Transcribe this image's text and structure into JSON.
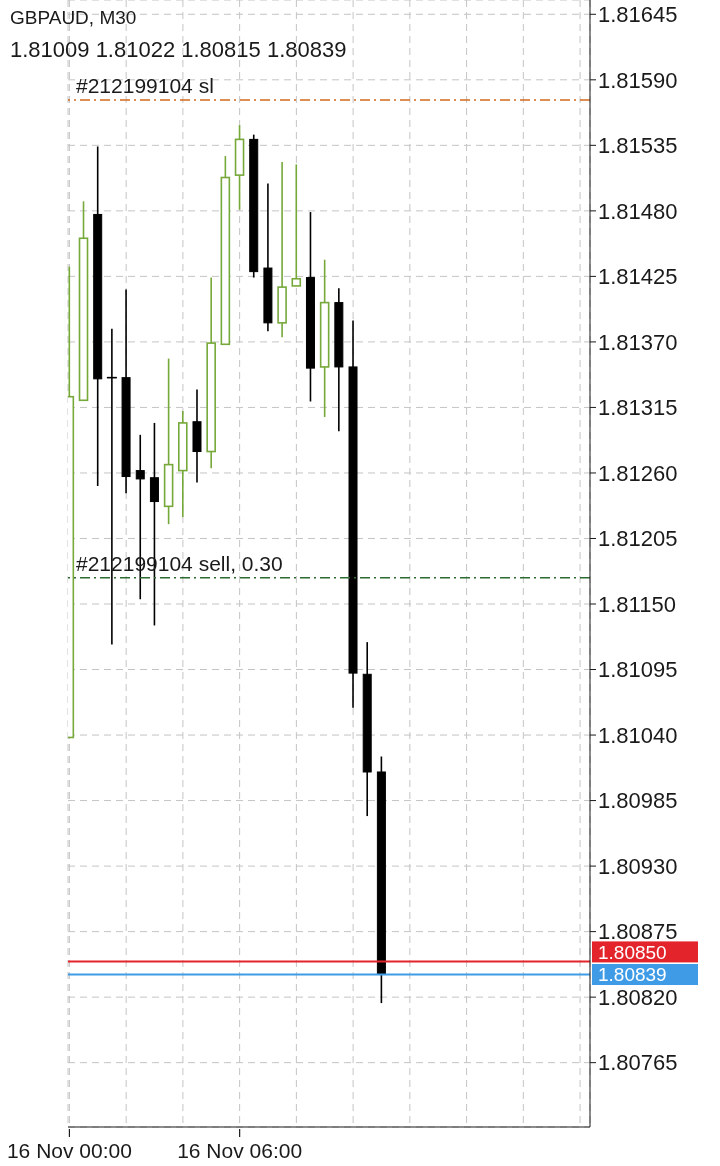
{
  "chart_data": {
    "type": "candlestick",
    "title": "GBPAUD, M30",
    "subtitle": "1.81009 1.81022 1.80815 1.80839",
    "x": [
      "--11-16T00:00",
      "--11-16T00:30",
      "--11-16T01:00",
      "--11-16T01:30",
      "--11-16T02:00",
      "--11-16T02:30",
      "--11-16T03:00",
      "--11-16T03:30",
      "--11-16T04:00",
      "--11-16T04:30",
      "--11-16T05:00",
      "--11-16T05:30",
      "--11-16T06:00",
      "--11-16T06:30",
      "--11-16T07:00",
      "--11-16T07:30",
      "--11-16T08:00",
      "--11-16T08:30",
      "--11-16T09:00",
      "--11-16T09:30",
      "--11-16T10:00",
      "--11-16T10:30",
      "--11-16T11:00"
    ],
    "ohlc": [
      [
        1.81038,
        1.81433,
        1.81038,
        1.81324
      ],
      [
        1.81321,
        1.81488,
        1.81321,
        1.81457
      ],
      [
        1.81477,
        1.81534,
        1.81249,
        1.81339
      ],
      [
        1.8134,
        1.81381,
        1.81116,
        1.8134
      ],
      [
        1.8134,
        1.81414,
        1.81243,
        1.81257
      ],
      [
        1.81262,
        1.81292,
        1.81154,
        1.81255
      ],
      [
        1.81256,
        1.81302,
        1.81132,
        1.81236
      ],
      [
        1.81232,
        1.81356,
        1.81217,
        1.81267
      ],
      [
        1.81262,
        1.81312,
        1.81223,
        1.81302
      ],
      [
        1.81303,
        1.8133,
        1.81252,
        1.81278
      ],
      [
        1.81278,
        1.81424,
        1.81264,
        1.81369
      ],
      [
        1.81368,
        1.81526,
        1.81368,
        1.81508
      ],
      [
        1.8151,
        1.81552,
        1.81481,
        1.8154
      ],
      [
        1.8154,
        1.81544,
        1.81424,
        1.81429
      ],
      [
        1.81432,
        1.81503,
        1.81379,
        1.81386
      ],
      [
        1.81386,
        1.81521,
        1.81374,
        1.81416
      ],
      [
        1.81417,
        1.81519,
        1.81417,
        1.81423
      ],
      [
        1.81424,
        1.81479,
        1.8132,
        1.81348
      ],
      [
        1.81349,
        1.81439,
        1.81307,
        1.81403
      ],
      [
        1.81403,
        1.81415,
        1.81295,
        1.81349
      ],
      [
        1.81349,
        1.81388,
        1.81063,
        1.81092
      ],
      [
        1.81091,
        1.81118,
        1.80972,
        1.81009
      ],
      [
        1.81009,
        1.81022,
        1.80815,
        1.80839
      ]
    ],
    "colors": [
      "#76a83a",
      "#76a83a",
      "#000000",
      "#000000",
      "#000000",
      "#000000",
      "#000000",
      "#76a83a",
      "#76a83a",
      "#000000",
      "#76a83a",
      "#76a83a",
      "#76a83a",
      "#000000",
      "#000000",
      "#76a83a",
      "#76a83a",
      "#000000",
      "#76a83a",
      "#000000",
      "#000000",
      "#000000",
      "#000000"
    ],
    "xlim": [
      "--11-15T23:57",
      "--11-16T18:21"
    ],
    "xticks": [
      {
        "value": "--11-16T00:00",
        "label": "16 Nov 00:00"
      },
      {
        "value": "--11-16T02:00",
        "label": null
      },
      {
        "value": "--11-16T04:00",
        "label": null
      },
      {
        "value": "--11-16T06:00",
        "label": "16 Nov 06:00"
      },
      {
        "value": "--11-16T08:00",
        "label": null
      },
      {
        "value": "--11-16T10:00",
        "label": null
      },
      {
        "value": "--11-16T12:00",
        "label": null
      },
      {
        "value": "--11-16T14:00",
        "label": null
      },
      {
        "value": "--11-16T16:00",
        "label": null
      },
      {
        "value": "--11-16T18:00",
        "label": null
      }
    ],
    "ylim": [
      1.80711,
      1.81657
    ],
    "yticks": [
      1.80765,
      {
        "value": 1.8082,
        "label": "1.80820"
      },
      1.80875,
      {
        "value": 1.8093,
        "label": "1.80930"
      },
      1.80985,
      {
        "value": 1.8104,
        "label": "1.81040"
      },
      1.81095,
      {
        "value": 1.8115,
        "label": "1.81150"
      },
      1.81205,
      {
        "value": 1.8126,
        "label": "1.81260"
      },
      1.81315,
      {
        "value": 1.8137,
        "label": "1.81370"
      },
      1.81425,
      {
        "value": 1.8148,
        "label": "1.81480"
      },
      1.81535,
      {
        "value": 1.8159,
        "label": "1.81590"
      },
      1.81645
    ],
    "grid": true,
    "ref_lines": [
      {
        "axis": "y",
        "value": 1.81573,
        "label": "#212199104 sl",
        "color": "#d2691e",
        "line_style": "dashed"
      },
      {
        "axis": "y",
        "value": 1.81172,
        "label": "#212199104 sell, 0.30",
        "color": "#2e6b30",
        "line_style": "dashed"
      },
      {
        "axis": "y",
        "value": 1.8085,
        "label": "1.80850",
        "color": "#e3242b",
        "line_style": "solid"
      },
      {
        "axis": "y",
        "value": 1.80839,
        "label": "1.80839",
        "color": "#3f9be6",
        "line_style": "solid"
      }
    ]
  }
}
